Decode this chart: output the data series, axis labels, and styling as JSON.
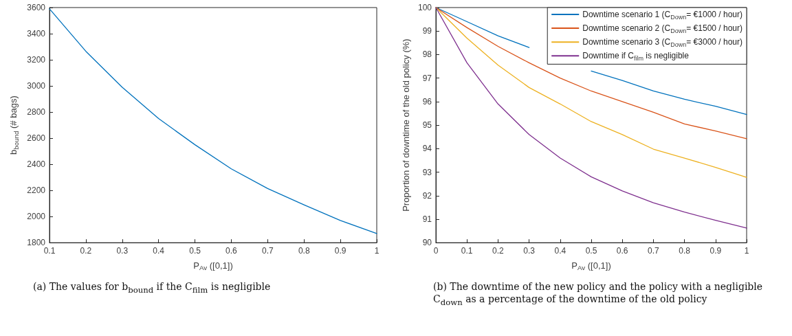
{
  "chart_data": [
    {
      "type": "line",
      "xlabel": "P$_{Av}$ ([0,1])",
      "ylabel": "b$_{bound}$ (# bags)",
      "annotations": [
        "(a) The values for b$_{bound}$ if the C$_{film}$ is negligible"
      ],
      "x": [
        0.1,
        0.2,
        0.3,
        0.4,
        0.5,
        0.6,
        0.7,
        0.8,
        0.9,
        1
      ],
      "series": [
        {
          "color": "#0072bd",
          "values": [
            3590,
            3265,
            2990,
            2750,
            2550,
            2365,
            2215,
            2090,
            1970,
            1870
          ]
        }
      ],
      "xlim": [
        0.1,
        1
      ],
      "xticks": [
        0.1,
        0.2,
        0.3,
        0.4,
        0.5,
        0.6,
        0.7,
        0.8,
        0.9,
        1
      ],
      "ylim": [
        1800,
        3600
      ],
      "yticks": [
        1800,
        2000,
        2200,
        2400,
        2600,
        2800,
        3000,
        3200,
        3400,
        3600
      ],
      "grid": false,
      "legend": false,
      "marker": "none"
    },
    {
      "type": "line",
      "xlabel": "P$_{Av}$ ([0,1])",
      "ylabel": "Proportion of downtime of the old policy (%)",
      "annotations": [
        "(b) The downtime of the new policy and the policy with a negligible C$_{down}$ as a percentage of the downtime of the old policy"
      ],
      "x": [
        0,
        0.1,
        0.2,
        0.3,
        0.4,
        0.5,
        0.6,
        0.7,
        0.8,
        0.9,
        1
      ],
      "series": [
        {
          "name": "Downtime scenario 1 (C$_{Down}$= €1000 / hour)",
          "color": "#0072bd",
          "values": [
            100,
            99.4,
            98.8,
            98.3,
            null,
            97.3,
            96.9,
            96.45,
            96.1,
            95.8,
            95.45
          ]
        },
        {
          "name": "Downtime scenario 2 (C$_{Down}$= €1500 / hour)",
          "color": "#d95319",
          "values": [
            100,
            99.15,
            98.35,
            97.65,
            97.0,
            96.45,
            96.0,
            95.55,
            95.05,
            94.75,
            94.42
          ]
        },
        {
          "name": "Downtime scenario 3 (C$_{Down}$= €3000 / hour)",
          "color": "#edb120",
          "values": [
            100,
            98.7,
            97.55,
            96.6,
            95.9,
            95.15,
            94.6,
            93.98,
            93.6,
            93.2,
            92.78
          ]
        },
        {
          "name": "Downtime if C$_{film}$ is negligible",
          "color": "#7e2f8e",
          "values": [
            100,
            97.65,
            95.9,
            94.6,
            93.6,
            92.8,
            92.2,
            91.7,
            91.3,
            90.95,
            90.62
          ]
        }
      ],
      "xlim": [
        0,
        1
      ],
      "xticks": [
        0,
        0.1,
        0.2,
        0.3,
        0.4,
        0.5,
        0.6,
        0.7,
        0.8,
        0.9,
        1
      ],
      "ylim": [
        90,
        100
      ],
      "yticks": [
        90,
        91,
        92,
        93,
        94,
        95,
        96,
        97,
        98,
        99,
        100
      ],
      "grid": false,
      "legend": "top right",
      "marker": "none"
    }
  ]
}
